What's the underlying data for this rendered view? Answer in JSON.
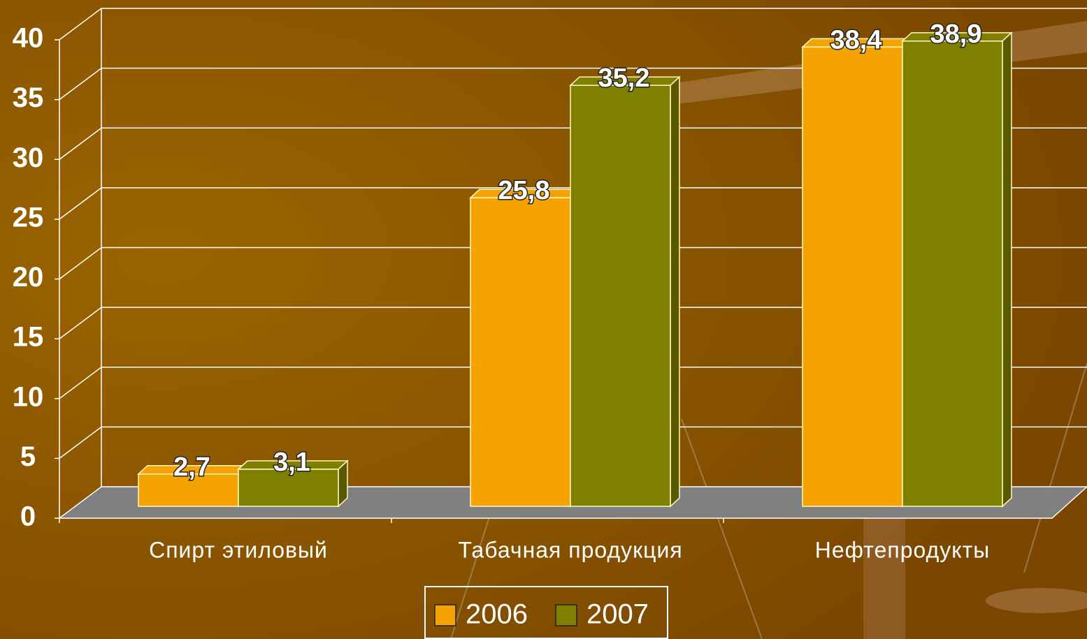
{
  "chart_data": {
    "type": "bar3d",
    "categories": [
      "Спирт этиловый",
      "Табачная продукция",
      "Нефтепродукты"
    ],
    "series": [
      {
        "name": "2006",
        "color": "#f5a300",
        "values": [
          2.7,
          25.8,
          38.4
        ],
        "value_labels": [
          "2,7",
          "25,8",
          "38,4"
        ]
      },
      {
        "name": "2007",
        "color": "#7f7f00",
        "values": [
          3.1,
          35.2,
          38.9
        ],
        "value_labels": [
          "3,1",
          "35,2",
          "38,9"
        ]
      }
    ],
    "ylim": [
      0,
      40
    ],
    "yticks": [
      0,
      5,
      10,
      15,
      20,
      25,
      30,
      35,
      40
    ],
    "grid": true
  }
}
